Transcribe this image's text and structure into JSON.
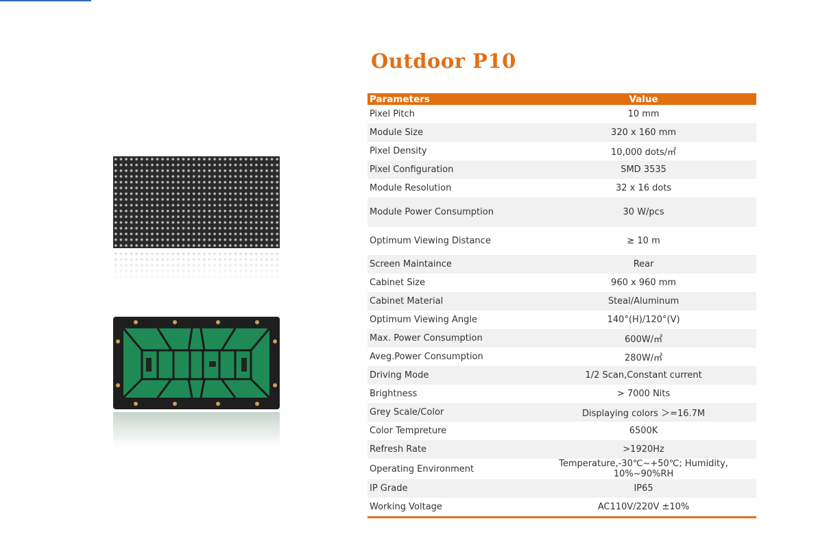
{
  "title": "Outdoor P10",
  "colors": {
    "accent": "#e26f10",
    "stripe": "#f1f1f1"
  },
  "table": {
    "headers": [
      "Parameters",
      "Value"
    ],
    "rows": [
      {
        "param": " Pixel Pitch",
        "value": "10 mm"
      },
      {
        "param": " Module Size",
        "value": "320 x 160 mm"
      },
      {
        "param": " Pixel Density",
        "value": "10,000 dots/㎡"
      },
      {
        "param": " Pixel Configuration",
        "value": "SMD 3535"
      },
      {
        "param": " Module Resolution",
        "value": "32 x 16 dots"
      },
      {
        "param": " Module Power Consumption",
        "value": "30 W/pcs"
      },
      {
        "param": "Optimum Viewing Distance",
        "value": "≥ 10 m"
      },
      {
        "param": "Screen Maintaince",
        "value": "Rear"
      },
      {
        "param": "Cabinet Size",
        "value": "960 x 960  mm"
      },
      {
        "param": "Cabinet Material",
        "value": "Steal/Aluminum"
      },
      {
        "param": "Optimum Viewing Angle",
        "value": "140°(H)/120°(V)"
      },
      {
        "param": "Max. Power Consumption",
        "value": "600W/㎡"
      },
      {
        "param": "Aveg.Power Consumption",
        "value": "280W/㎡"
      },
      {
        "param": "Driving Mode",
        "value": "1/2 Scan,Constant current"
      },
      {
        "param": "Brightness",
        "value": "> 7000 Nits"
      },
      {
        "param": "Grey Scale/Color",
        "value": "Displaying colors ＞=16.7M"
      },
      {
        "param": "Color Tempreture",
        "value": "6500K"
      },
      {
        "param": "Refresh Rate",
        "value": ">1920Hz"
      },
      {
        "param": "Operating Environment",
        "value": "Temperature,-30℃~+50℃;  Humidity, 10%~90%RH"
      },
      {
        "param": "IP Grade",
        "value": "IP65"
      },
      {
        "param": "Working Voltage",
        "value": "AC110V/220V ±10%"
      }
    ]
  }
}
